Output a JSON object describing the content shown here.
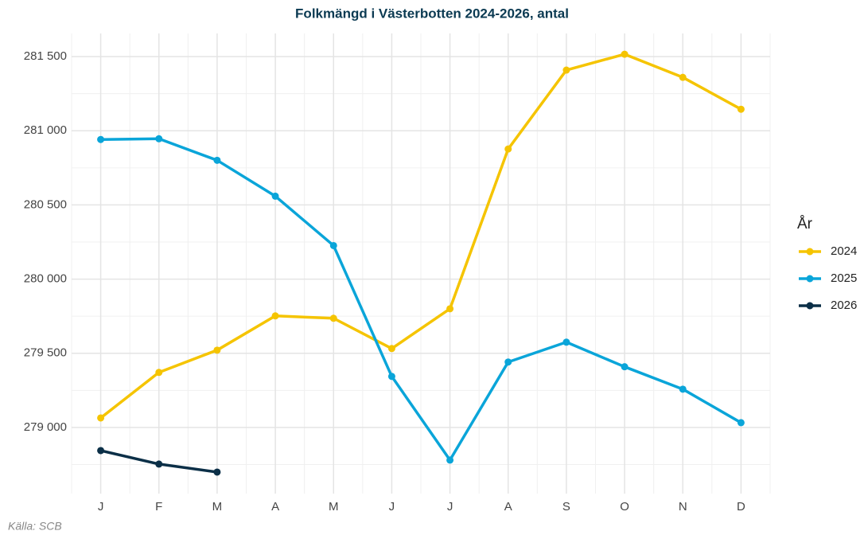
{
  "chart_data": {
    "type": "line",
    "title": "Folkmängd i Västerbotten 2024-2026, antal",
    "caption": "Källa: SCB",
    "legend_title": "År",
    "legend_position": "right",
    "grid": true,
    "categories": [
      "J",
      "F",
      "M",
      "A",
      "M",
      "J",
      "J",
      "A",
      "S",
      "O",
      "N",
      "D"
    ],
    "ylim": [
      278554,
      281656
    ],
    "yticks": [
      {
        "value": 279000,
        "label": "279 000"
      },
      {
        "value": 279500,
        "label": "279 500"
      },
      {
        "value": 280000,
        "label": "280 000"
      },
      {
        "value": 280500,
        "label": "280 500"
      },
      {
        "value": 281000,
        "label": "281 000"
      },
      {
        "value": 281500,
        "label": "281 500"
      }
    ],
    "series": [
      {
        "name": "2024",
        "color": "#f5c400",
        "values": [
          279064,
          279371,
          279521,
          279752,
          279736,
          279532,
          279800,
          280877,
          281409,
          281516,
          281360,
          281145
        ]
      },
      {
        "name": "2025",
        "color": "#0aa5d9",
        "values": [
          280941,
          280946,
          280801,
          280559,
          280226,
          279344,
          278780,
          279441,
          279575,
          279409,
          279258,
          279032
        ]
      },
      {
        "name": "2026",
        "color": "#0b2f47",
        "values": [
          278844,
          278753,
          278699,
          null,
          null,
          null,
          null,
          null,
          null,
          null,
          null,
          null
        ]
      }
    ]
  }
}
